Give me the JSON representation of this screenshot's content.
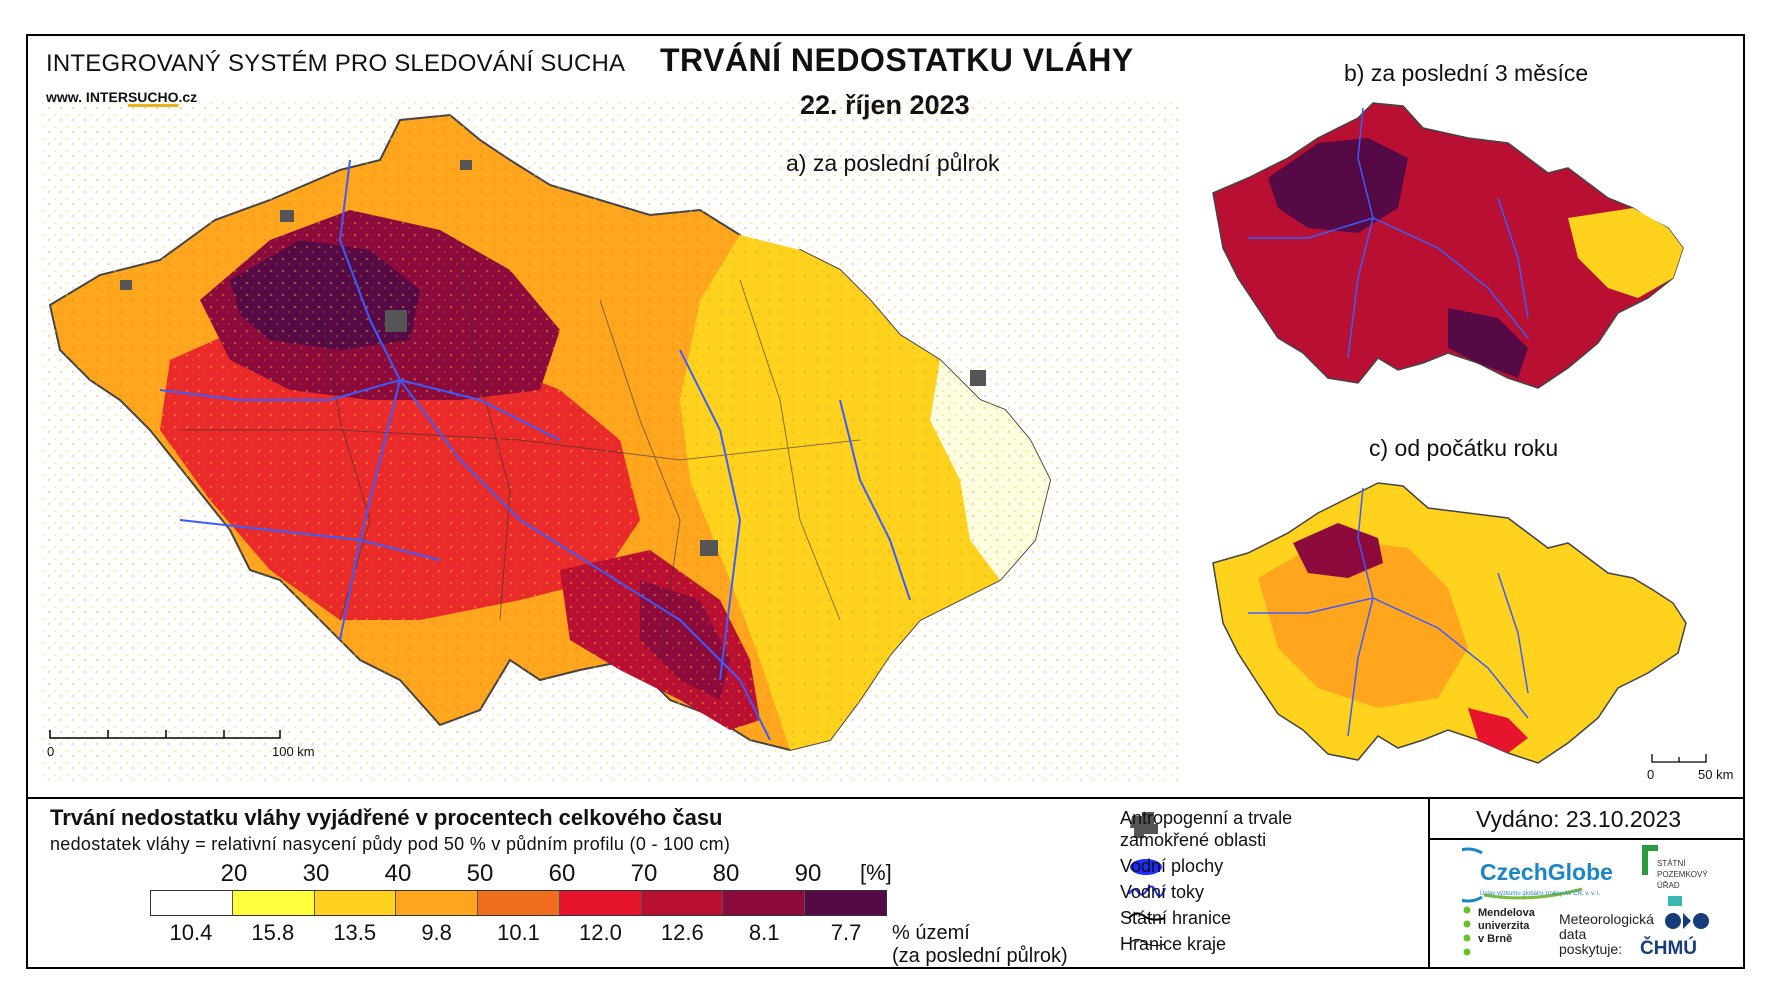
{
  "header": {
    "system_title": "INTEGROVANÝ SYSTÉM PRO SLEDOVÁNÍ SUCHA",
    "website_prefix": "www. INTER",
    "website_highlight": "SUCHO",
    "website_suffix": ".cz",
    "main_title": "TRVÁNÍ NEDOSTATKU VLÁHY",
    "date": "22. říjen 2023"
  },
  "maps": {
    "a_label": "a) za poslední půlrok",
    "b_label": "b) za poslední 3 měsíce",
    "c_label": "c) od počátku roku",
    "a_scale_start": "0",
    "a_scale_end": "100 km",
    "c_scale_start": "0",
    "c_scale_end": "50 km"
  },
  "legend": {
    "title": "Trvání nedostatku vláhy vyjádřené v procentech celkového času",
    "subtitle": "nedostatek vláhy = relativní nasycení půdy pod 50 % v půdním profilu (0 - 100 cm)",
    "thresholds": [
      "20",
      "30",
      "40",
      "50",
      "60",
      "70",
      "80",
      "90"
    ],
    "unit": "[%]",
    "colors": [
      "#ffffff",
      "#ffff3c",
      "#ffd21e",
      "#ffa51e",
      "#f06e1e",
      "#e6142d",
      "#b90f32",
      "#8c0a3c",
      "#550a46"
    ],
    "percentages": [
      "10.4",
      "15.8",
      "13.5",
      "9.8",
      "10.1",
      "12.0",
      "12.6",
      "8.1",
      "7.7"
    ],
    "share_label": "% území",
    "share_period": "(za poslední půlrok)"
  },
  "symbol_legend": {
    "anthropogenic": "Antropogenní a trvale",
    "anthropogenic_2": "zamokřené oblasti",
    "water_bodies": "Vodní plochy",
    "water_courses": "Vodní toky",
    "state_border": "Státní hranice",
    "region_border": "Hranice kraje"
  },
  "footer": {
    "issued": "Vydáno: 23.10.2023",
    "czechglobe": "CzechGlobe",
    "czechglobe_sub": "Ústav výzkumu globální změny AV ČR, v. v. i.",
    "spu_1": "STÁTNÍ",
    "spu_2": "POZEMKOVÝ",
    "spu_3": "ÚŘAD",
    "mendel_1": "Mendelova",
    "mendel_2": "univerzita",
    "mendel_3": "v Brně",
    "meteo_1": "Meteorologická",
    "meteo_2": "data",
    "meteo_3": "poskytuje:",
    "chmu": "ČHMÚ"
  }
}
